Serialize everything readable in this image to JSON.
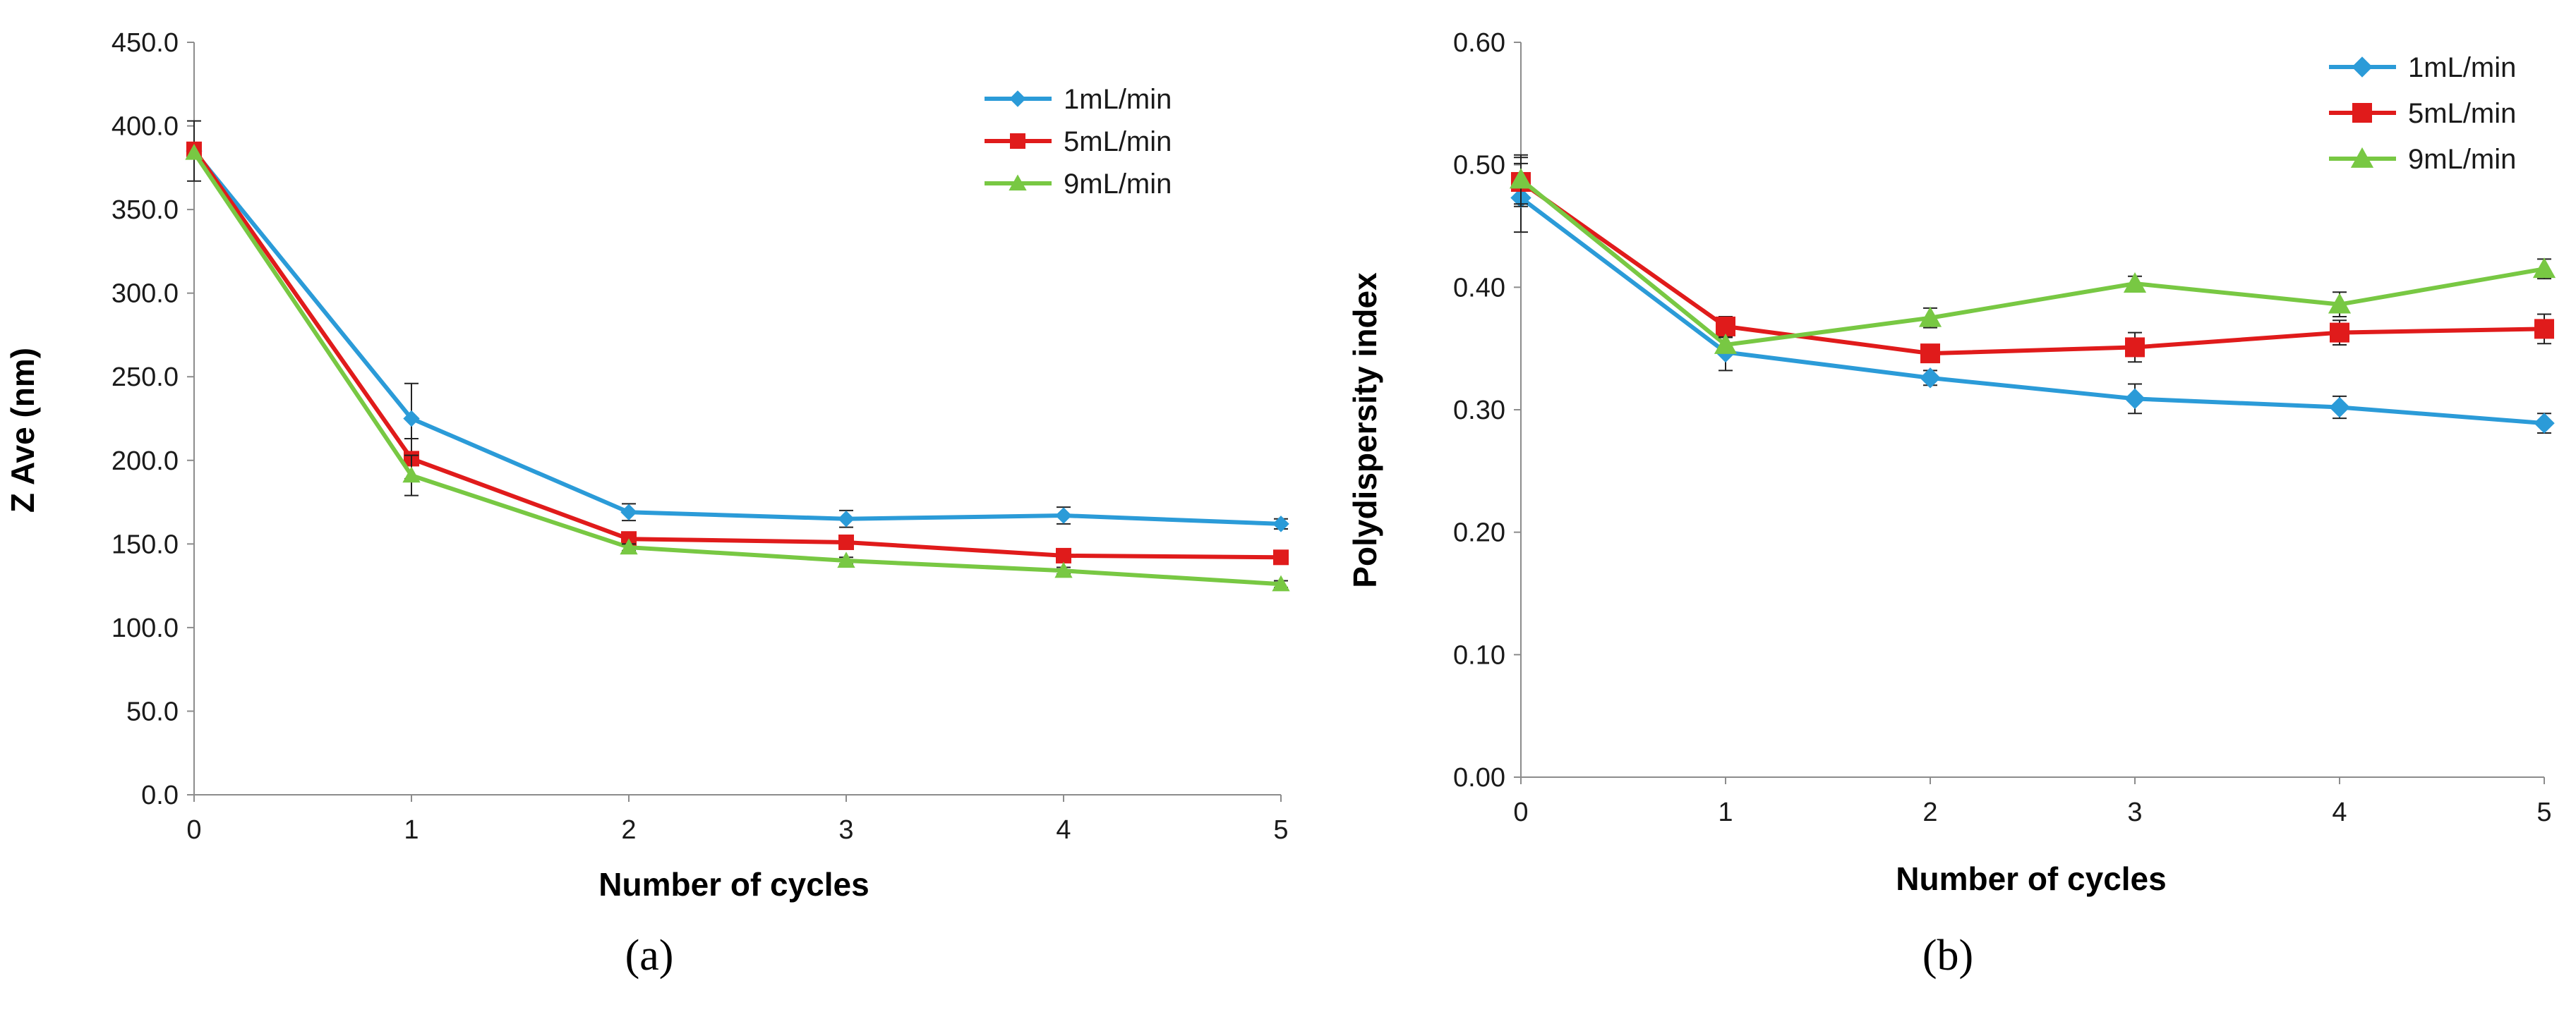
{
  "chart_data": [
    {
      "type": "line",
      "panel_label": "(a)",
      "xlabel": "Number of cycles",
      "ylabel": "Z Ave (nm)",
      "x": [
        0,
        1,
        2,
        3,
        4,
        5
      ],
      "xticks": [
        "0",
        "1",
        "2",
        "3",
        "4",
        "5"
      ],
      "xlim": [
        0,
        5
      ],
      "ylim": [
        0,
        450
      ],
      "yticks": [
        "0.0",
        "50.0",
        "100.0",
        "150.0",
        "200.0",
        "250.0",
        "300.0",
        "350.0",
        "400.0",
        "450.0"
      ],
      "legend_position": "top-right",
      "grid": false,
      "series": [
        {
          "name": "1mL/min",
          "color": "#2b9bd8",
          "marker": "diamond",
          "values": [
            385,
            225,
            169,
            165,
            167,
            162
          ],
          "errors": [
            18,
            21,
            5,
            5,
            5,
            3
          ]
        },
        {
          "name": "5mL/min",
          "color": "#e01b1b",
          "marker": "square",
          "values": [
            386,
            201,
            153,
            151,
            143,
            142
          ],
          "errors": [
            0,
            12,
            3,
            3,
            3,
            3
          ]
        },
        {
          "name": "9mL/min",
          "color": "#78c843",
          "marker": "triangle",
          "values": [
            384,
            191,
            148,
            140,
            134,
            126
          ],
          "errors": [
            0,
            12,
            2,
            2,
            2,
            2
          ]
        }
      ]
    },
    {
      "type": "line",
      "panel_label": "(b)",
      "xlabel": "Number of cycles",
      "ylabel": "Polydispersity index",
      "x": [
        0,
        1,
        2,
        3,
        4,
        5
      ],
      "xticks": [
        "0",
        "1",
        "2",
        "3",
        "4",
        "5"
      ],
      "xlim": [
        0,
        5
      ],
      "ylim": [
        0,
        0.6
      ],
      "yticks": [
        "0.00",
        "0.10",
        "0.20",
        "0.30",
        "0.40",
        "0.50",
        "0.60"
      ],
      "legend_position": "top-right",
      "grid": false,
      "series": [
        {
          "name": "1mL/min",
          "color": "#2b9bd8",
          "marker": "diamond",
          "values": [
            0.473,
            0.347,
            0.326,
            0.309,
            0.302,
            0.289
          ],
          "errors": [
            0.028,
            0.015,
            0.006,
            0.012,
            0.009,
            0.008
          ]
        },
        {
          "name": "5mL/min",
          "color": "#e01b1b",
          "marker": "square",
          "values": [
            0.486,
            0.368,
            0.346,
            0.351,
            0.363,
            0.366
          ],
          "errors": [
            0.02,
            0.008,
            0.006,
            0.012,
            0.01,
            0.012
          ]
        },
        {
          "name": "9mL/min",
          "color": "#78c843",
          "marker": "triangle",
          "values": [
            0.488,
            0.353,
            0.375,
            0.403,
            0.386,
            0.415
          ],
          "errors": [
            0.02,
            0.006,
            0.008,
            0.006,
            0.01,
            0.008
          ]
        }
      ]
    }
  ]
}
